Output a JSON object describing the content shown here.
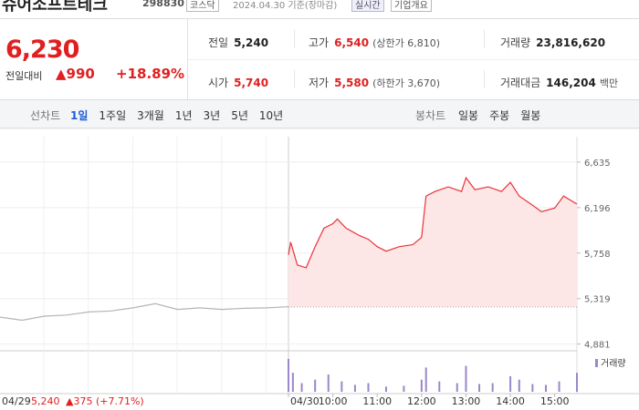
{
  "header": {
    "name": "슈어소프트테크",
    "code": "298830",
    "market": "코스닥",
    "date": "2024.04.30 기준(장마감)",
    "realtime": "실시간",
    "overview": "기업개요"
  },
  "summary": {
    "price": "6,230",
    "change_label": "전일대비",
    "change": "▲990",
    "change_rate": "+18.89%"
  },
  "stats": [
    {
      "label": "전일",
      "value": "5,240"
    },
    {
      "label": "고가",
      "value": "6,540",
      "note": "(상한가 6,810)"
    },
    {
      "label": "거래량",
      "value": "23,816,620"
    },
    {
      "label": "시가",
      "value": "5,740"
    },
    {
      "label": "저가",
      "value": "5,580",
      "note": "(하한가 3,670)"
    },
    {
      "label": "거래대금",
      "value": "146,204",
      "unit": "백만"
    }
  ],
  "tabs": {
    "line_label": "선차트",
    "line": [
      "1일",
      "1주일",
      "3개월",
      "1년",
      "3년",
      "5년",
      "10년"
    ],
    "selected": 0,
    "candle_label": "봉차트",
    "candle": [
      "일봉",
      "주봉",
      "월봉"
    ]
  },
  "chart_data": {
    "type": "line",
    "ylim": [
      4860,
      6880
    ],
    "yticks": [
      {
        "value": 6635,
        "label": "6,635"
      },
      {
        "value": 6196,
        "label": "6,196"
      },
      {
        "value": 5758,
        "label": "5,758"
      },
      {
        "value": 5319,
        "label": "5,319"
      },
      {
        "value": 4881,
        "label": "4,881"
      }
    ],
    "reference": 5240,
    "xlim": [
      9,
      15.5
    ],
    "xticks": [
      {
        "value": 9,
        "label": "04/30"
      },
      {
        "value": 10,
        "label": "10:00"
      },
      {
        "value": 11,
        "label": "11:00"
      },
      {
        "value": 12,
        "label": "12:00"
      },
      {
        "value": 13,
        "label": "13:00"
      },
      {
        "value": 14,
        "label": "14:00"
      },
      {
        "value": 15,
        "label": "15:00"
      }
    ],
    "series": [
      {
        "color": "#e8333a",
        "fill": "#fde6e6",
        "x": [
          9,
          9.05,
          9.2,
          9.4,
          9.6,
          9.8,
          10,
          10.1,
          10.3,
          10.6,
          10.8,
          11,
          11.2,
          11.5,
          11.8,
          12,
          12.1,
          12.3,
          12.6,
          12.9,
          13,
          13.2,
          13.5,
          13.8,
          14,
          14.2,
          14.5,
          14.7,
          15,
          15.2,
          15.5
        ],
        "values": [
          5740,
          5864,
          5643,
          5616,
          5820,
          5997,
          6041,
          6086,
          5997,
          5926,
          5891,
          5820,
          5776,
          5820,
          5838,
          5909,
          6307,
          6351,
          6396,
          6351,
          6484,
          6369,
          6396,
          6351,
          6440,
          6307,
          6219,
          6157,
          6192,
          6307,
          6230
        ]
      },
      {
        "color": "#b5b5b5",
        "xlim": [
          9,
          15.5
        ],
        "x": [
          9,
          9.5,
          10,
          10.5,
          11,
          11.5,
          12,
          12.5,
          13,
          13.5,
          14,
          14.5,
          15,
          15.5
        ],
        "values": [
          5140,
          5110,
          5150,
          5160,
          5190,
          5200,
          5230,
          5270,
          5215,
          5230,
          5215,
          5225,
          5230,
          5240
        ]
      }
    ],
    "volume": {
      "name": "거래량",
      "color": "#9b87c9",
      "ylim": [
        0,
        40
      ],
      "x": [
        9,
        9.1,
        9.3,
        9.6,
        9.9,
        10.2,
        10.5,
        10.8,
        11.2,
        11.6,
        12,
        12.1,
        12.4,
        12.8,
        13,
        13.3,
        13.6,
        14,
        14.2,
        14.5,
        14.8,
        15.1,
        15.5
      ],
      "values": [
        38,
        22,
        10,
        14,
        20,
        12,
        8,
        10,
        6,
        7,
        14,
        28,
        12,
        10,
        30,
        9,
        10,
        18,
        14,
        9,
        8,
        12,
        22
      ]
    }
  },
  "footer": {
    "date": "04/29",
    "price": "5,240",
    "change": "▲375 (+7.71%)"
  }
}
